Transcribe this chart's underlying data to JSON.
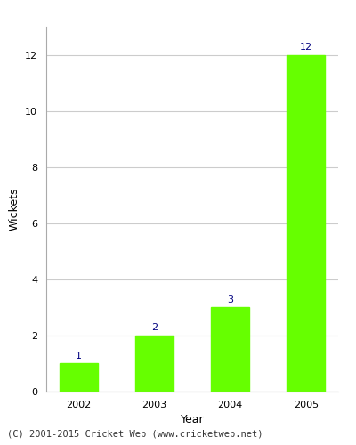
{
  "categories": [
    "2002",
    "2003",
    "2004",
    "2005"
  ],
  "values": [
    1,
    2,
    3,
    12
  ],
  "bar_color": "#66ff00",
  "bar_edgecolor": "#66ff00",
  "xlabel": "Year",
  "ylabel": "Wickets",
  "ylim": [
    0,
    13
  ],
  "yticks": [
    0,
    2,
    4,
    6,
    8,
    10,
    12
  ],
  "label_color": "#000080",
  "label_fontsize": 8,
  "axis_label_fontsize": 9,
  "tick_fontsize": 8,
  "grid_color": "#cccccc",
  "background_color": "#ffffff",
  "footer_text": "(C) 2001-2015 Cricket Web (www.cricketweb.net)",
  "footer_fontsize": 7.5,
  "footer_color": "#333333"
}
